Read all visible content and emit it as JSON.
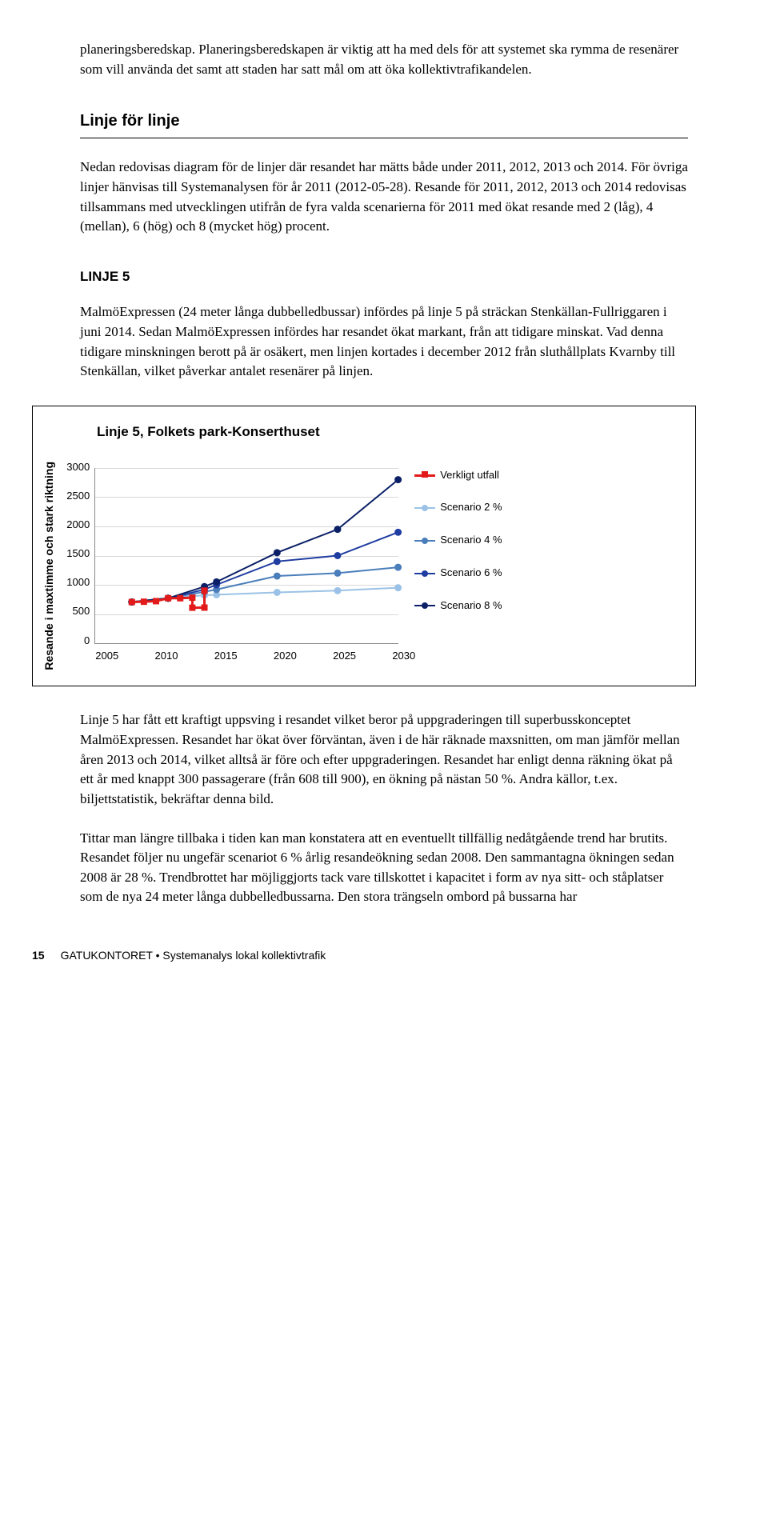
{
  "intro_para": "planeringsberedskap. Planeringsberedskapen är viktig att ha med dels för att systemet ska rymma de resenärer som vill använda det samt att staden har satt mål om att öka kollektivtrafikandelen.",
  "section_heading": "Linje för linje",
  "section_para": "Nedan redovisas diagram för de linjer där resandet har mätts både under 2011, 2012, 2013 och 2014. För övriga linjer hänvisas till Systemanalysen för år 2011 (2012-05-28). Resande för 2011, 2012, 2013 och 2014 redovisas tillsammans med utvecklingen utifrån de fyra valda scenarierna för 2011 med ökat resande med 2 (låg), 4 (mellan), 6 (hög) och 8 (mycket hög) procent.",
  "sub_heading": "LINJE 5",
  "sub_para": "MalmöExpressen (24 meter långa dubbelledbussar) infördes på linje 5 på sträckan Stenkällan-Fullriggaren i juni 2014. Sedan MalmöExpressen infördes har resandet ökat markant, från att tidigare minskat. Vad denna tidigare minskningen berott på är osäkert, men linjen kortades i december 2012 från sluthållplats Kvarnby till Stenkällan, vilket påverkar antalet resenärer på linjen.",
  "conclusion_1": "Linje 5 har fått ett kraftigt uppsving i resandet vilket beror på uppgraderingen till superbusskonceptet MalmöExpressen. Resandet har ökat över förväntan, även i de här räknade maxsnitten, om man jämför mellan åren 2013 och 2014, vilket alltså är före och efter uppgraderingen. Resandet har enligt denna räkning ökat på ett år med knappt 300 passagerare (från 608 till 900), en ökning på nästan 50 %. Andra källor, t.ex. biljettstatistik, bekräftar denna bild.",
  "conclusion_2": "Tittar man längre tillbaka i tiden kan man konstatera att en eventuellt tillfällig nedåtgående trend har brutits. Resandet följer nu ungefär scenariot 6 % årlig resandeökning sedan 2008. Den sammantagna ökningen sedan 2008 är 28 %. Trendbrottet har möjliggjorts tack vare tillskottet i kapacitet i form av nya sitt- och ståplatser som de nya 24 meter långa dubbelledbussarna. Den stora trängseln ombord på bussarna har",
  "footer": {
    "page": "15",
    "text": "GATUKONTORET • Systemanalys lokal kollektivtrafik"
  },
  "chart": {
    "title": "Linje 5, Folkets park-Konserthuset",
    "y_axis_label": "Resande i maxtimme och stark riktning",
    "type": "line",
    "xlim": [
      2005,
      2030
    ],
    "ylim": [
      0,
      3000
    ],
    "ytick_step": 500,
    "yticks": [
      "3000",
      "2500",
      "2000",
      "1500",
      "1000",
      "500",
      "0"
    ],
    "xticks": [
      "2005",
      "2010",
      "2015",
      "2020",
      "2025",
      "2030"
    ],
    "background_color": "#ffffff",
    "grid_color": "#d9d9d9",
    "border_color": "#888888",
    "legend": [
      {
        "label": "Verkligt utfall",
        "color": "#e21a1a",
        "marker": "square",
        "line_width": 3
      },
      {
        "label": "Scenario 2 %",
        "color": "#9bc2e6",
        "marker": "circle",
        "line_width": 2
      },
      {
        "label": "Scenario 4 %",
        "color": "#4a7ebb",
        "marker": "circle",
        "line_width": 2
      },
      {
        "label": "Scenario 6 %",
        "color": "#1f3da0",
        "marker": "circle",
        "line_width": 2
      },
      {
        "label": "Scenario 8 %",
        "color": "#0a1f66",
        "marker": "circle",
        "line_width": 2
      }
    ],
    "series": {
      "verkligt": [
        {
          "x": 2008,
          "y": 705
        },
        {
          "x": 2009,
          "y": 710
        },
        {
          "x": 2010,
          "y": 720
        },
        {
          "x": 2011,
          "y": 770
        },
        {
          "x": 2012,
          "y": 770
        },
        {
          "x": 2013,
          "y": 780
        },
        {
          "x": 2013,
          "y": 608
        },
        {
          "x": 2014,
          "y": 610
        },
        {
          "x": 2014,
          "y": 900
        }
      ],
      "s2": [
        {
          "x": 2008,
          "y": 705
        },
        {
          "x": 2011,
          "y": 770
        },
        {
          "x": 2014,
          "y": 820
        },
        {
          "x": 2015,
          "y": 830
        },
        {
          "x": 2020,
          "y": 870
        },
        {
          "x": 2025,
          "y": 900
        },
        {
          "x": 2030,
          "y": 950
        }
      ],
      "s4": [
        {
          "x": 2008,
          "y": 705
        },
        {
          "x": 2011,
          "y": 770
        },
        {
          "x": 2014,
          "y": 880
        },
        {
          "x": 2015,
          "y": 920
        },
        {
          "x": 2020,
          "y": 1150
        },
        {
          "x": 2025,
          "y": 1200
        },
        {
          "x": 2030,
          "y": 1300
        }
      ],
      "s6": [
        {
          "x": 2008,
          "y": 705
        },
        {
          "x": 2011,
          "y": 770
        },
        {
          "x": 2014,
          "y": 920
        },
        {
          "x": 2015,
          "y": 1000
        },
        {
          "x": 2020,
          "y": 1400
        },
        {
          "x": 2025,
          "y": 1500
        },
        {
          "x": 2030,
          "y": 1900
        }
      ],
      "s8": [
        {
          "x": 2008,
          "y": 705
        },
        {
          "x": 2011,
          "y": 770
        },
        {
          "x": 2014,
          "y": 970
        },
        {
          "x": 2015,
          "y": 1050
        },
        {
          "x": 2020,
          "y": 1550
        },
        {
          "x": 2025,
          "y": 1950
        },
        {
          "x": 2030,
          "y": 2800
        }
      ]
    }
  }
}
